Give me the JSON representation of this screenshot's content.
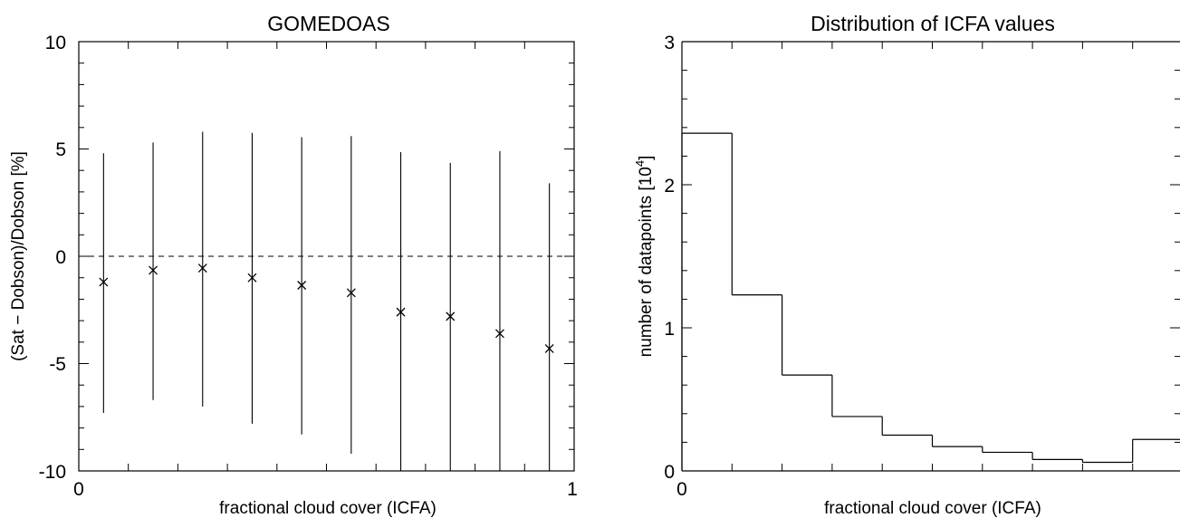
{
  "chart_data": [
    {
      "type": "scatter",
      "title": "GOMEDOAS",
      "xlabel": "fractional cloud cover (ICFA)",
      "ylabel": "(Sat − Dobson)/Dobson [%]",
      "xlim": [
        0,
        1
      ],
      "ylim": [
        -10,
        10
      ],
      "x_tick_labels": [
        "0",
        "1"
      ],
      "y_tick_labels": [
        "-10",
        "-5",
        "0",
        "5",
        "10"
      ],
      "reference_line": {
        "y": 0,
        "style": "dashed"
      },
      "marker": "x",
      "points": [
        {
          "x": 0.05,
          "y": -1.2,
          "y_low": -7.3,
          "y_high": 4.8
        },
        {
          "x": 0.15,
          "y": -0.65,
          "y_low": -6.7,
          "y_high": 5.3
        },
        {
          "x": 0.25,
          "y": -0.55,
          "y_low": -7.0,
          "y_high": 5.8
        },
        {
          "x": 0.35,
          "y": -1.0,
          "y_low": -7.8,
          "y_high": 5.75
        },
        {
          "x": 0.45,
          "y": -1.35,
          "y_low": -8.3,
          "y_high": 5.55
        },
        {
          "x": 0.55,
          "y": -1.7,
          "y_low": -9.2,
          "y_high": 5.6
        },
        {
          "x": 0.65,
          "y": -2.6,
          "y_low": -10,
          "y_high": 4.85
        },
        {
          "x": 0.75,
          "y": -2.8,
          "y_low": -10,
          "y_high": 4.35
        },
        {
          "x": 0.85,
          "y": -3.6,
          "y_low": -10,
          "y_high": 4.9
        },
        {
          "x": 0.95,
          "y": -4.3,
          "y_low": -10,
          "y_high": 3.4
        }
      ]
    },
    {
      "type": "bar",
      "style": "step-histogram",
      "title": "Distribution of ICFA values",
      "xlabel": "fractional cloud cover (ICFA)",
      "ylabel_main": "number of datapoints [10",
      "ylabel_sup": "4",
      "ylabel_end": "]",
      "xlim": [
        0,
        1
      ],
      "ylim": [
        0,
        3
      ],
      "x_tick_labels": [
        "0"
      ],
      "y_tick_labels": [
        "0",
        "1",
        "2",
        "3"
      ],
      "bin_edges": [
        0,
        0.1,
        0.2,
        0.3,
        0.4,
        0.5,
        0.6,
        0.7,
        0.8,
        0.9,
        1.0
      ],
      "values": [
        2.36,
        1.23,
        0.67,
        0.38,
        0.25,
        0.17,
        0.13,
        0.08,
        0.06,
        0.22
      ]
    }
  ]
}
